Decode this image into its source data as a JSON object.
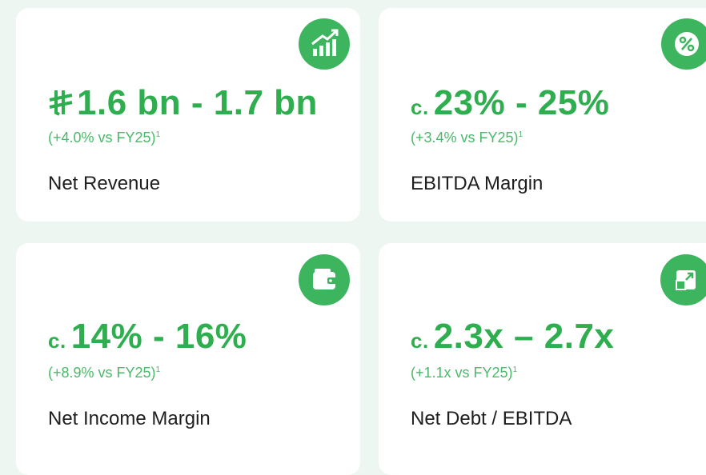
{
  "cards": [
    {
      "value": "1.6 bn - 1.7 bn",
      "change": "(+4.0% vs FY25)",
      "footnote": "1",
      "label": "Net Revenue"
    },
    {
      "prefix": "c.",
      "value": "23% - 25%",
      "change": "(+3.4% vs FY25)",
      "footnote": "1",
      "label": "EBITDA Margin"
    },
    {
      "prefix": "c.",
      "value": "14% - 16%",
      "change": "(+8.9% vs FY25)",
      "footnote": "1",
      "label": "Net Income Margin"
    },
    {
      "prefix": "c.",
      "value": "2.3x – 2.7x",
      "change": "(+1.1x vs FY25)",
      "footnote": "1",
      "label": "Net Debt / EBITDA"
    }
  ]
}
